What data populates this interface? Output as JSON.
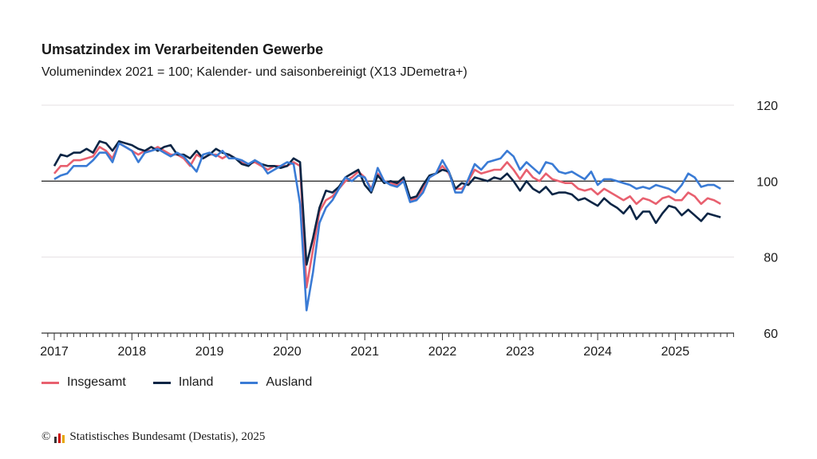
{
  "chart_data": {
    "type": "line",
    "title": "Umsatzindex im Verarbeitenden Gewerbe",
    "subtitle": "Volumenindex 2021 = 100; Kalender- und saisonbereinigt (X13 JDemetra+)",
    "x_start": "2017-01",
    "x_frequency": "monthly",
    "x_ticks": [
      "2017",
      "2018",
      "2019",
      "2020",
      "2021",
      "2022",
      "2023",
      "2024",
      "2025"
    ],
    "y_ticks": [
      60,
      80,
      100,
      120
    ],
    "ylim": [
      60,
      120
    ],
    "reference_line": 100,
    "grid": true,
    "legend_position": "bottom-left",
    "series": [
      {
        "name": "Insgesamt",
        "color": "#e8606f",
        "values": [
          102,
          104,
          104,
          105.5,
          105.5,
          106,
          106.5,
          109,
          108,
          106,
          110,
          109,
          108,
          107,
          108,
          108,
          109,
          108,
          107,
          107,
          106,
          104,
          107,
          106,
          107,
          107,
          106,
          107,
          106,
          105,
          104.5,
          105,
          104,
          103,
          104,
          104,
          104,
          105,
          104,
          72,
          82,
          92,
          95,
          96,
          98,
          100,
          101,
          102.5,
          101,
          98,
          102,
          100,
          99.5,
          99,
          100.5,
          95,
          95.5,
          98,
          101,
          102,
          104,
          102,
          98,
          98,
          100,
          103,
          102,
          102.5,
          103,
          103,
          105,
          103,
          100.5,
          103,
          101,
          100,
          102,
          100.5,
          100,
          99.5,
          99.5,
          98,
          97.5,
          98,
          96.5,
          98,
          97,
          96,
          95,
          96,
          94,
          95.5,
          95,
          94,
          95.5,
          96,
          95,
          95,
          97,
          96,
          94,
          95.5,
          95,
          94
        ]
      },
      {
        "name": "Inland",
        "color": "#0b2545",
        "values": [
          104,
          107,
          106.5,
          107.5,
          107.5,
          108.5,
          107.5,
          110.5,
          110,
          108,
          110.5,
          110,
          109.5,
          108.5,
          108,
          109,
          108,
          109,
          109.5,
          107,
          107,
          106,
          108,
          106,
          107,
          108.5,
          107.5,
          107,
          106,
          104.5,
          104,
          105.5,
          104.5,
          104,
          104,
          103.5,
          104,
          106,
          105,
          78,
          85,
          93,
          97.5,
          97,
          98.5,
          101,
          102,
          103,
          99,
          97,
          101.5,
          99.5,
          100,
          99.5,
          101,
          95.5,
          96,
          99,
          101.5,
          102,
          103,
          102.5,
          98,
          99.5,
          99,
          101,
          100.5,
          100,
          101,
          100.5,
          102,
          100,
          97.5,
          100,
          98,
          97,
          98.5,
          96.5,
          97,
          97,
          96.5,
          95,
          95.5,
          94.5,
          93.5,
          95.5,
          94,
          93,
          91.5,
          93.5,
          90,
          92,
          92,
          89,
          91.5,
          93.5,
          93,
          91,
          92.5,
          91,
          89.5,
          91.5,
          91,
          90.5
        ]
      },
      {
        "name": "Ausland",
        "color": "#3a7bd5",
        "values": [
          100.5,
          101.5,
          102,
          104,
          104,
          104,
          105.5,
          107.5,
          107.5,
          105,
          110,
          109,
          108,
          105,
          107.5,
          108,
          108.5,
          107.5,
          106.5,
          107.5,
          106.5,
          104.5,
          102.5,
          107,
          107.5,
          106.5,
          108,
          106,
          106,
          105.5,
          104.5,
          105.5,
          104.5,
          102,
          103,
          104,
          105,
          104.5,
          94,
          66,
          76,
          89,
          93,
          95,
          98,
          101,
          100,
          101.5,
          101,
          97.5,
          103.5,
          100,
          99,
          98.5,
          100,
          94.5,
          95,
          97,
          101,
          102,
          105.5,
          102.5,
          97,
          97,
          100.5,
          104.5,
          103,
          105,
          105.5,
          106,
          108,
          106.5,
          103,
          105,
          103.5,
          102,
          105,
          104.5,
          102.5,
          102,
          102.5,
          101.5,
          100.5,
          102.5,
          99,
          100.5,
          100.5,
          100,
          99.5,
          99,
          98,
          98.5,
          98,
          99,
          98.5,
          98,
          97,
          99,
          102,
          101,
          98.5,
          99,
          99,
          98
        ]
      }
    ]
  },
  "source": "Statistisches Bundesamt (Destatis), 2025",
  "copyright_symbol": "©"
}
